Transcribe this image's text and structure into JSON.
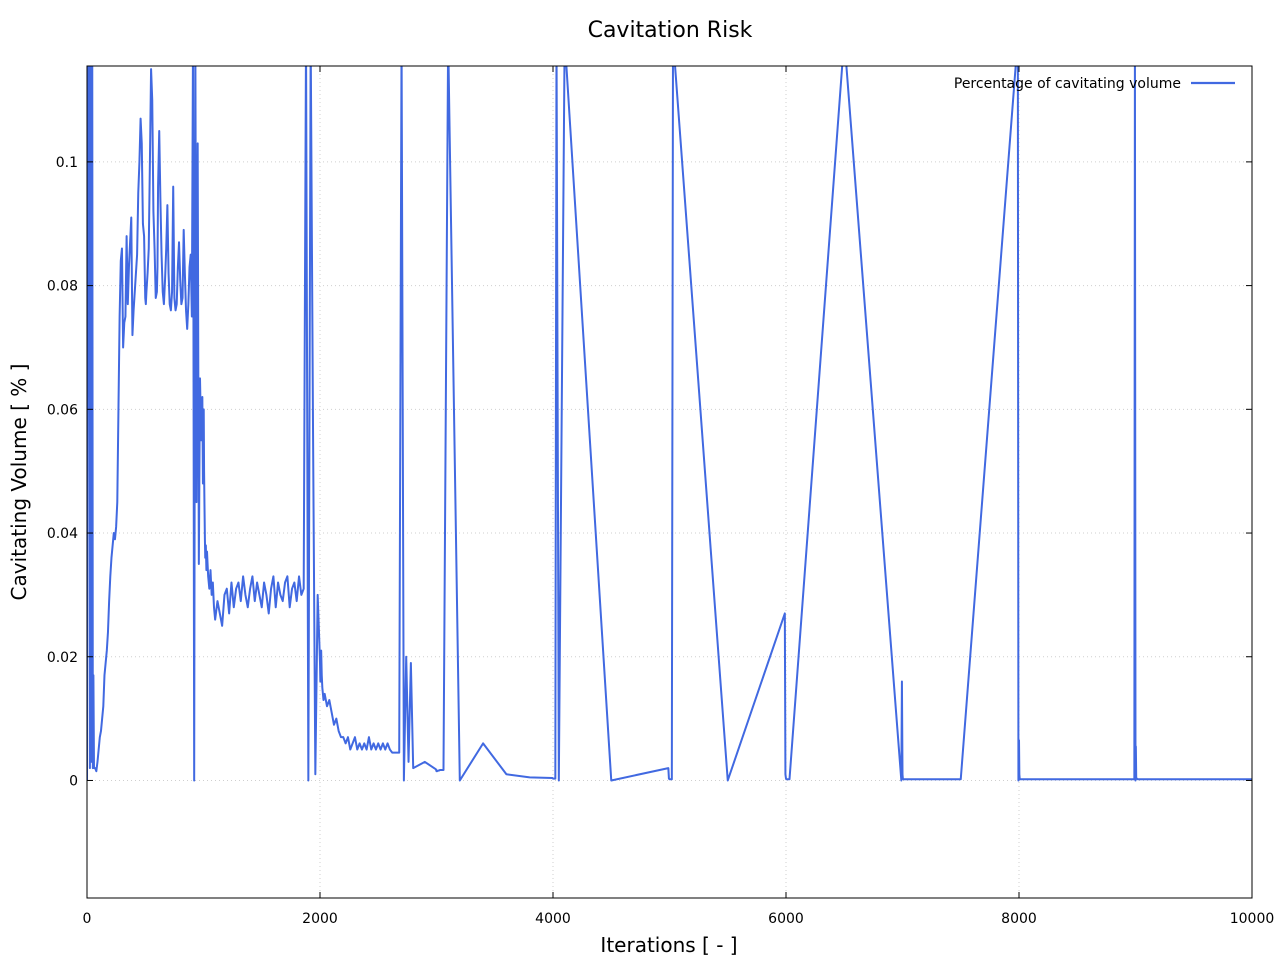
{
  "chart_data": {
    "type": "line",
    "title": "Cavitation Risk",
    "xlabel": "Iterations [ - ]",
    "ylabel": "Cavitating Volume [ % ]",
    "xlim": [
      0,
      10000
    ],
    "ylim": [
      -0.019,
      0.1155
    ],
    "xticks": [
      0,
      2000,
      4000,
      6000,
      8000,
      10000
    ],
    "yticks": [
      0,
      0.02,
      0.04,
      0.06,
      0.08,
      0.1
    ],
    "ytick_labels": [
      "0",
      "0.02",
      "0.04",
      "0.06",
      "0.08",
      "0.1"
    ],
    "grid": true,
    "legend_position": "top-right",
    "series": [
      {
        "name": "Percentage of cavitating volume",
        "color": "#4169e1",
        "x": [
          0,
          10,
          20,
          25,
          30,
          35,
          40,
          45,
          50,
          55,
          60,
          70,
          80,
          90,
          100,
          110,
          120,
          130,
          140,
          150,
          160,
          170,
          180,
          190,
          200,
          210,
          220,
          230,
          240,
          250,
          260,
          270,
          280,
          290,
          300,
          310,
          320,
          330,
          340,
          350,
          360,
          370,
          380,
          390,
          400,
          410,
          420,
          430,
          440,
          450,
          460,
          470,
          480,
          490,
          500,
          505,
          510,
          520,
          530,
          540,
          550,
          560,
          570,
          580,
          590,
          600,
          605,
          610,
          620,
          630,
          640,
          650,
          660,
          670,
          680,
          690,
          700,
          710,
          720,
          730,
          740,
          750,
          760,
          770,
          780,
          790,
          800,
          810,
          820,
          830,
          840,
          850,
          860,
          870,
          880,
          890,
          900,
          910,
          920,
          930,
          940,
          950,
          960,
          970,
          980,
          990,
          995,
          1000,
          1002,
          1005,
          1008,
          1010,
          1012,
          1015,
          1020,
          1025,
          1030,
          1035,
          1040,
          1050,
          1060,
          1070,
          1080,
          1090,
          1100,
          1120,
          1140,
          1160,
          1180,
          1200,
          1220,
          1240,
          1260,
          1280,
          1300,
          1320,
          1340,
          1360,
          1380,
          1400,
          1420,
          1440,
          1460,
          1480,
          1500,
          1520,
          1540,
          1560,
          1580,
          1600,
          1620,
          1640,
          1660,
          1680,
          1700,
          1720,
          1740,
          1760,
          1780,
          1800,
          1820,
          1840,
          1860,
          1880,
          1900,
          1920,
          1940,
          1960,
          1980,
          1995,
          2000,
          2003,
          2006,
          2010,
          2015,
          2020,
          2030,
          2040,
          2060,
          2080,
          2100,
          2120,
          2140,
          2160,
          2180,
          2200,
          2220,
          2240,
          2260,
          2280,
          2300,
          2320,
          2340,
          2360,
          2380,
          2400,
          2420,
          2440,
          2460,
          2480,
          2500,
          2520,
          2540,
          2560,
          2580,
          2600,
          2620,
          2640,
          2660,
          2680,
          2700,
          2720,
          2740,
          2760,
          2780,
          2800,
          2900,
          2995,
          3000,
          3003,
          3006,
          3010,
          3015,
          3020,
          3030,
          3040,
          3060,
          3100,
          3200,
          3400,
          3600,
          3800,
          3995,
          4000,
          4003,
          4006,
          4010,
          4015,
          4020,
          4030,
          4050,
          4100,
          4500,
          4990,
          4995,
          5000,
          5003,
          5006,
          5010,
          5020,
          5030,
          5500,
          5990,
          5995,
          6000,
          6003,
          6006,
          6010,
          6020,
          6030,
          6500,
          6990,
          6995,
          7000,
          7003,
          7006,
          7010,
          7020,
          7030,
          7500,
          7990,
          7995,
          8000,
          8003,
          8006,
          8010,
          8020,
          8030,
          8500,
          8990,
          8995,
          9000,
          9003,
          9006,
          9010,
          9020,
          9030,
          9500,
          10000
        ],
        "y": [
          0,
          0.12,
          0.12,
          0.002,
          0.12,
          0.065,
          0.003,
          0.12,
          0.002,
          0.017,
          0.002,
          0.002,
          0.0015,
          0.003,
          0.005,
          0.007,
          0.008,
          0.01,
          0.012,
          0.017,
          0.019,
          0.021,
          0.024,
          0.029,
          0.033,
          0.036,
          0.038,
          0.04,
          0.039,
          0.041,
          0.045,
          0.06,
          0.075,
          0.084,
          0.086,
          0.07,
          0.074,
          0.075,
          0.088,
          0.077,
          0.083,
          0.087,
          0.091,
          0.072,
          0.076,
          0.079,
          0.082,
          0.085,
          0.095,
          0.1,
          0.107,
          0.103,
          0.09,
          0.088,
          0.078,
          0.077,
          0.079,
          0.082,
          0.086,
          0.1,
          0.115,
          0.11,
          0.092,
          0.086,
          0.078,
          0.079,
          0.083,
          0.096,
          0.105,
          0.094,
          0.085,
          0.079,
          0.077,
          0.081,
          0.086,
          0.093,
          0.082,
          0.077,
          0.076,
          0.079,
          0.096,
          0.078,
          0.076,
          0.077,
          0.083,
          0.087,
          0.081,
          0.077,
          0.078,
          0.089,
          0.082,
          0.076,
          0.073,
          0.077,
          0.083,
          0.085,
          0.075,
          0.12,
          0.0,
          0.12,
          0.045,
          0.103,
          0.035,
          0.065,
          0.055,
          0.062,
          0.048,
          0.057,
          0.06,
          0.05,
          0.045,
          0.042,
          0.039,
          0.036,
          0.038,
          0.034,
          0.037,
          0.035,
          0.033,
          0.031,
          0.034,
          0.03,
          0.032,
          0.028,
          0.026,
          0.029,
          0.027,
          0.025,
          0.03,
          0.031,
          0.027,
          0.032,
          0.028,
          0.031,
          0.032,
          0.029,
          0.033,
          0.03,
          0.028,
          0.031,
          0.033,
          0.029,
          0.032,
          0.03,
          0.028,
          0.032,
          0.03,
          0.027,
          0.031,
          0.033,
          0.028,
          0.032,
          0.03,
          0.029,
          0.032,
          0.033,
          0.028,
          0.031,
          0.032,
          0.029,
          0.033,
          0.03,
          0.031,
          0.12,
          0.0,
          0.12,
          0.057,
          0.001,
          0.03,
          0.022,
          0.019,
          0.016,
          0.02,
          0.021,
          0.017,
          0.015,
          0.013,
          0.014,
          0.012,
          0.013,
          0.011,
          0.009,
          0.01,
          0.008,
          0.007,
          0.007,
          0.006,
          0.007,
          0.005,
          0.006,
          0.007,
          0.005,
          0.006,
          0.005,
          0.006,
          0.005,
          0.007,
          0.005,
          0.006,
          0.005,
          0.006,
          0.005,
          0.006,
          0.005,
          0.006,
          0.005,
          0.0045,
          0.0045,
          0.0045,
          0.0045,
          0.12,
          0.0,
          0.02,
          0.003,
          0.019,
          0.002,
          0.003,
          0.0018,
          0.0015,
          0.0016,
          0.0015,
          0.0016,
          0.0016,
          0.0016,
          0.0017,
          0.0017,
          0.0017,
          0.12,
          0.0,
          0.006,
          0.001,
          0.0005,
          0.0004,
          0.0003,
          0.0003,
          0.0003,
          0.0003,
          0.0003,
          0.0003,
          0.12,
          0.0,
          0.12,
          0.0,
          0.002,
          0.0003,
          0.0002,
          0.0002,
          0.0002,
          0.0002,
          0.0002,
          0.12,
          0.0,
          0.027,
          0.001,
          0.0003,
          0.0002,
          0.0002,
          0.0002,
          0.0002,
          0.0002,
          0.12,
          0.0,
          0.016,
          0.001,
          0.0003,
          0.0002,
          0.0002,
          0.0002,
          0.0002,
          0.0002,
          0.12,
          0.0,
          0.0065,
          0.001,
          0.0003,
          0.0002,
          0.0002,
          0.0002,
          0.0002,
          0.0002,
          0.12,
          0.0,
          0.0055,
          0.0005,
          0.0003,
          0.0002,
          0.0002,
          0.0002,
          0.0002
        ]
      }
    ]
  }
}
